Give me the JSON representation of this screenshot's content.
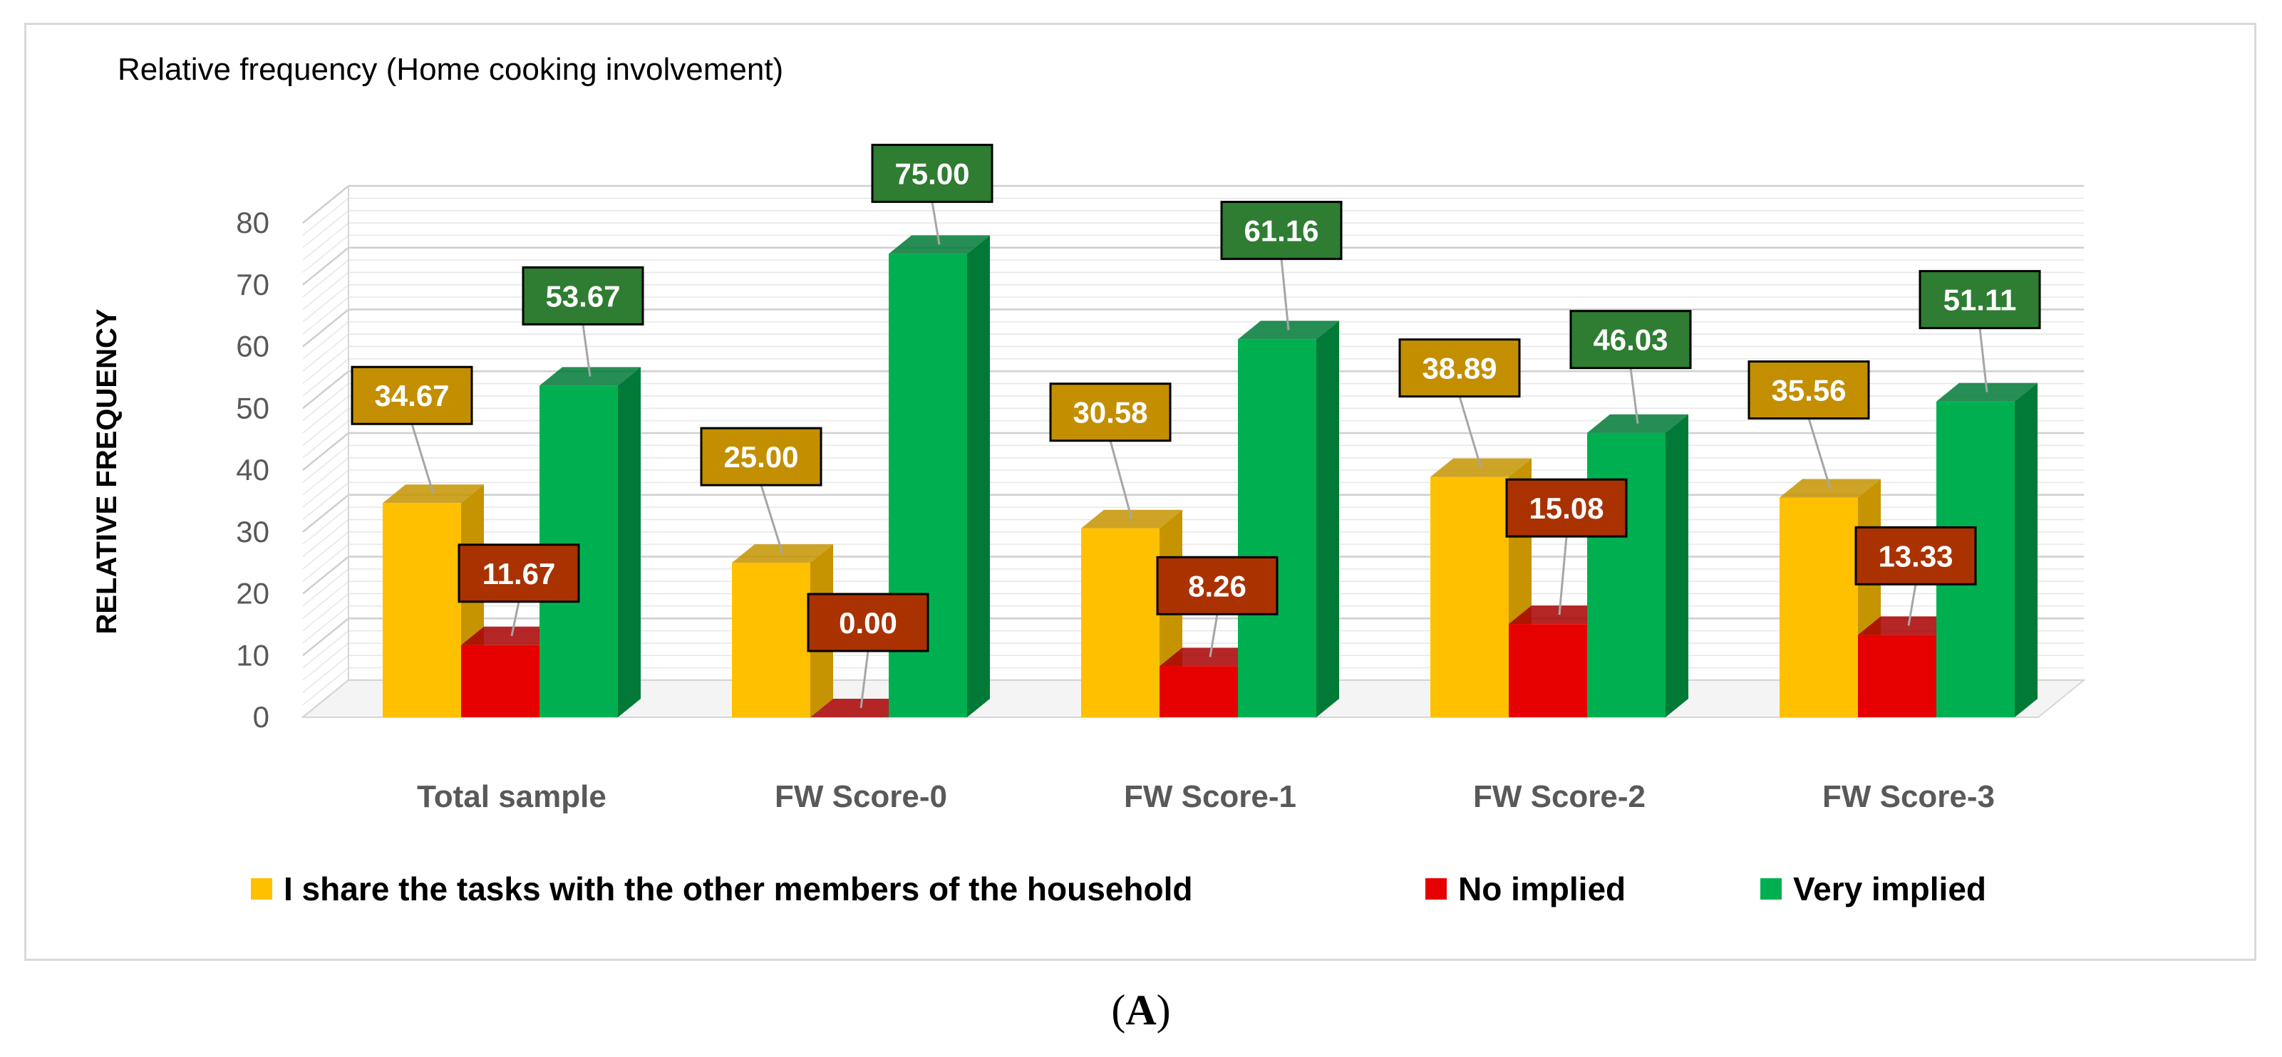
{
  "chart_data": {
    "type": "bar",
    "title": "Relative frequency (Home cooking involvement)",
    "xlabel": "",
    "ylabel": "RELATIVE FREQUENCY",
    "ylim": [
      0,
      80
    ],
    "yticks": [
      0,
      10,
      20,
      30,
      40,
      50,
      60,
      70,
      80
    ],
    "categories": [
      "Total sample",
      "FW Score-0",
      "FW Score-1",
      "FW Score-2",
      "FW Score-3"
    ],
    "series": [
      {
        "name": "I share the tasks with the other members of the household",
        "values": [
          34.67,
          25.0,
          30.58,
          38.89,
          35.56
        ],
        "labels": [
          "34.67",
          "25.00",
          "30.58",
          "38.89",
          "35.56"
        ],
        "color": "#FFC000",
        "side_color": "#C59400",
        "label_bg": "#C38F00"
      },
      {
        "name": "No implied",
        "values": [
          11.67,
          0.0,
          8.26,
          15.08,
          13.33
        ],
        "labels": [
          "11.67",
          "0.00",
          "8.26",
          "15.08",
          "13.33"
        ],
        "color": "#E60000",
        "side_color": "#A80000",
        "label_bg": "#A93200"
      },
      {
        "name": "Very implied",
        "values": [
          53.67,
          75.0,
          61.16,
          46.03,
          51.11
        ],
        "labels": [
          "53.67",
          "75.00",
          "61.16",
          "46.03",
          "51.11"
        ],
        "color": "#00B050",
        "side_color": "#007A36",
        "label_bg": "#2E7D32"
      }
    ],
    "legend_position": "bottom",
    "grid": true
  },
  "caption": {
    "open": "(",
    "letter": "A",
    "close": ")"
  }
}
